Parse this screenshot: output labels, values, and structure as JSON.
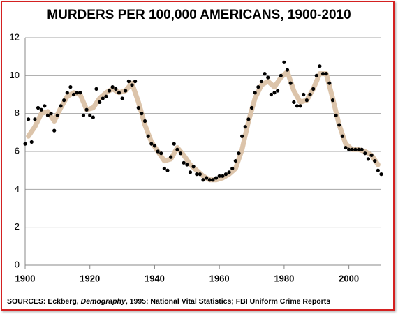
{
  "chart_data": {
    "type": "scatter",
    "title": "MURDERS PER 100,000 AMERICANS, 1900-2010",
    "source": [
      "SOURCES: Eckberg, ",
      "Demography",
      ", 1995; National Vital Statistics; FBI Uniform Crime Reports"
    ],
    "xlim": [
      1900,
      2010
    ],
    "xticks": [
      1900,
      1920,
      1940,
      1960,
      1980,
      2000
    ],
    "ylim": [
      0,
      12
    ],
    "yticks": [
      0,
      2,
      4,
      6,
      8,
      10,
      12
    ],
    "grid": true,
    "series": [
      {
        "type": "scatter",
        "color": "#000000",
        "x": [
          1900,
          1901,
          1902,
          1903,
          1904,
          1905,
          1906,
          1907,
          1908,
          1909,
          1910,
          1911,
          1912,
          1913,
          1914,
          1915,
          1916,
          1917,
          1918,
          1919,
          1920,
          1921,
          1922,
          1923,
          1924,
          1925,
          1926,
          1927,
          1928,
          1929,
          1930,
          1931,
          1932,
          1933,
          1934,
          1935,
          1936,
          1937,
          1938,
          1939,
          1940,
          1941,
          1942,
          1943,
          1944,
          1945,
          1946,
          1947,
          1948,
          1949,
          1950,
          1951,
          1952,
          1953,
          1954,
          1955,
          1956,
          1957,
          1958,
          1959,
          1960,
          1961,
          1962,
          1963,
          1964,
          1965,
          1966,
          1967,
          1968,
          1969,
          1970,
          1971,
          1972,
          1973,
          1974,
          1975,
          1976,
          1977,
          1978,
          1979,
          1980,
          1981,
          1982,
          1983,
          1984,
          1985,
          1986,
          1987,
          1988,
          1989,
          1990,
          1991,
          1992,
          1993,
          1994,
          1995,
          1996,
          1997,
          1998,
          1999,
          2000,
          2001,
          2002,
          2003,
          2004,
          2005,
          2006,
          2007,
          2008,
          2009,
          2010
        ],
        "values": [
          6.4,
          7.7,
          6.5,
          7.7,
          8.3,
          8.2,
          8.4,
          7.9,
          8.0,
          7.1,
          7.9,
          8.4,
          8.7,
          9.1,
          9.4,
          9.0,
          9.1,
          9.1,
          7.9,
          8.2,
          7.9,
          7.8,
          9.3,
          8.6,
          8.8,
          8.9,
          9.2,
          9.4,
          9.3,
          9.1,
          8.8,
          9.2,
          9.7,
          9.5,
          9.7,
          8.3,
          8.0,
          7.6,
          6.8,
          6.4,
          6.3,
          6.0,
          5.9,
          5.1,
          5.0,
          5.7,
          6.4,
          6.1,
          5.9,
          5.4,
          5.3,
          4.9,
          5.2,
          4.8,
          4.8,
          4.5,
          4.6,
          4.5,
          4.5,
          4.6,
          4.7,
          4.7,
          4.8,
          4.9,
          5.1,
          5.5,
          5.9,
          6.8,
          7.3,
          7.7,
          8.3,
          9.1,
          9.4,
          9.7,
          10.1,
          9.9,
          9.0,
          9.1,
          9.2,
          10.0,
          10.7,
          10.3,
          9.6,
          8.6,
          8.4,
          8.4,
          9.0,
          8.7,
          9.0,
          9.3,
          10.0,
          10.5,
          10.1,
          10.1,
          9.6,
          8.7,
          7.9,
          7.4,
          6.8,
          6.2,
          6.1,
          6.1,
          6.1,
          6.1,
          6.1,
          5.9,
          5.6,
          5.8,
          5.5,
          5.0,
          4.8
        ]
      },
      {
        "type": "line",
        "color": "#dcc4aa",
        "x": [
          1901,
          1903,
          1905,
          1907,
          1909,
          1911,
          1913,
          1915,
          1917,
          1919,
          1921,
          1923,
          1925,
          1927,
          1929,
          1931,
          1933,
          1935,
          1937,
          1939,
          1941,
          1943,
          1945,
          1947,
          1949,
          1951,
          1953,
          1955,
          1957,
          1959,
          1961,
          1963,
          1965,
          1967,
          1969,
          1971,
          1973,
          1975,
          1977,
          1979,
          1981,
          1983,
          1985,
          1987,
          1989,
          1991,
          1993,
          1995,
          1997,
          1999,
          2001,
          2003,
          2005,
          2007,
          2009
        ],
        "values": [
          6.8,
          7.3,
          8.0,
          8.1,
          7.6,
          8.3,
          8.9,
          9.1,
          9.0,
          8.2,
          8.3,
          8.8,
          9.1,
          9.3,
          9.1,
          9.2,
          9.6,
          8.6,
          7.4,
          6.5,
          6.0,
          5.5,
          5.6,
          6.2,
          5.8,
          5.3,
          5.0,
          4.7,
          4.5,
          4.5,
          4.6,
          4.8,
          5.1,
          6.1,
          7.6,
          8.8,
          9.5,
          9.7,
          9.4,
          9.9,
          10.2,
          9.2,
          8.6,
          8.7,
          9.3,
          10.1,
          10.1,
          8.8,
          7.4,
          6.4,
          6.1,
          6.1,
          6.0,
          5.8,
          5.3
        ]
      }
    ]
  }
}
